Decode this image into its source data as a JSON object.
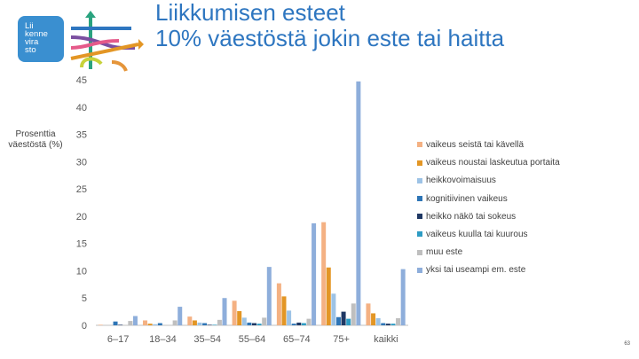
{
  "header": {
    "title_line1": "Liikkumisen esteet",
    "title_line2": "10% väestöstä jokin este tai haitta"
  },
  "logo": {
    "line1": "Lii",
    "line2": "kenne",
    "line3": "vira",
    "line4": "sto"
  },
  "page_number": "63",
  "colors": {
    "title": "#2e76c0",
    "axis_text": "#595959",
    "grid": "#d9d9d9"
  },
  "chart_data": {
    "type": "bar",
    "ylabel": "Prosenttia väestöstä (%)",
    "ylabel_line1": "Prosenttia",
    "ylabel_line2": "väestöstä (%)",
    "ylim": [
      0,
      45
    ],
    "yticks": [
      0,
      5,
      10,
      15,
      20,
      25,
      30,
      35,
      40,
      45
    ],
    "grid": false,
    "legend_position": "right",
    "categories": [
      "6–17",
      "18–34",
      "35–54",
      "55–64",
      "65–74",
      "75+",
      "kaikki"
    ],
    "series": [
      {
        "name": "vaikeus seistä tai kävellä",
        "color": "#f4b183",
        "values": [
          0.1,
          0.9,
          1.6,
          4.5,
          7.7,
          18.9,
          4.0
        ]
      },
      {
        "name": "vaikeus noustai laskeutua portaita",
        "color": "#e39625",
        "values": [
          0.0,
          0.3,
          0.9,
          2.6,
          5.3,
          10.6,
          2.2
        ]
      },
      {
        "name": "heikkovoimaisuus",
        "color": "#9dc3e6",
        "values": [
          0.0,
          0.2,
          0.5,
          1.4,
          2.7,
          5.8,
          1.3
        ]
      },
      {
        "name": "kognitiivinen vaikeus",
        "color": "#2e75b6",
        "values": [
          0.7,
          0.4,
          0.4,
          0.5,
          0.3,
          1.5,
          0.4
        ]
      },
      {
        "name": "heikko näkö tai sokeus",
        "color": "#1f3864",
        "values": [
          0.1,
          0.0,
          0.1,
          0.4,
          0.5,
          2.5,
          0.3
        ]
      },
      {
        "name": "vaikeus kuulla tai kuurous",
        "color": "#2e9cc4",
        "values": [
          0.0,
          0.0,
          0.1,
          0.3,
          0.4,
          1.2,
          0.3
        ]
      },
      {
        "name": "muu este",
        "color": "#bfbfbf",
        "values": [
          0.8,
          0.9,
          1.0,
          1.4,
          1.2,
          4.0,
          1.3
        ]
      },
      {
        "name": "yksi tai useampi em. este",
        "color": "#8eaedb",
        "values": [
          1.7,
          3.4,
          5.0,
          10.7,
          18.7,
          44.7,
          10.3
        ]
      }
    ]
  }
}
